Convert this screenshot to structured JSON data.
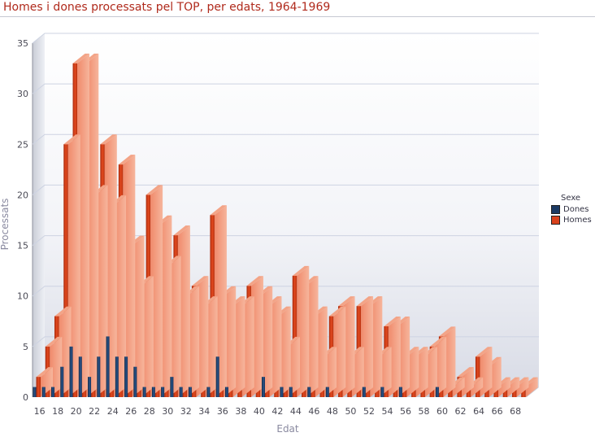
{
  "page": {
    "title": "Homes i dones processats pel TOP, per edats, 1964-1969"
  },
  "chart_data": {
    "type": "bar",
    "title": "Homes i dones processats pel TOP, per edats, 1964-1969",
    "xlabel": "Edat",
    "ylabel": "Processats",
    "categories": [
      16,
      17,
      18,
      19,
      20,
      21,
      22,
      23,
      24,
      25,
      26,
      27,
      28,
      29,
      30,
      31,
      32,
      33,
      34,
      35,
      36,
      37,
      38,
      39,
      40,
      41,
      42,
      43,
      44,
      45,
      46,
      47,
      48,
      49,
      50,
      51,
      52,
      53,
      54,
      55,
      56,
      57,
      58,
      59,
      60,
      61,
      62,
      63,
      64,
      65,
      66,
      67,
      68,
      69
    ],
    "x_tick_labels": [
      "16",
      "18",
      "20",
      "22",
      "24",
      "26",
      "28",
      "30",
      "32",
      "34",
      "36",
      "38",
      "40",
      "42",
      "44",
      "46",
      "48",
      "50",
      "52",
      "54",
      "56",
      "58",
      "60",
      "62",
      "64",
      "66",
      "68"
    ],
    "ylim": [
      0,
      35
    ],
    "y_ticks": [
      0,
      5,
      10,
      15,
      20,
      25,
      30,
      35
    ],
    "grid": true,
    "legend_title": "Sexe",
    "legend_position": "right",
    "series": [
      {
        "name": "Dones",
        "color": "#1b3a63",
        "values": [
          1,
          1,
          1,
          3,
          5,
          4,
          2,
          4,
          6,
          4,
          4,
          3,
          1,
          1,
          1,
          2,
          1,
          1,
          0,
          1,
          4,
          1,
          0,
          0,
          0,
          2,
          0,
          1,
          1,
          0,
          1,
          0,
          1,
          0,
          0,
          0,
          1,
          0,
          1,
          0,
          1,
          0,
          0,
          0,
          1,
          0,
          0,
          0,
          0,
          0,
          0,
          0,
          0,
          0
        ]
      },
      {
        "name": "Homes",
        "color": "#d8411c",
        "values": [
          2,
          5,
          8,
          25,
          33,
          33,
          20,
          25,
          19,
          23,
          15,
          11,
          20,
          17,
          13,
          16,
          10,
          11,
          9,
          18,
          10,
          9,
          9,
          11,
          10,
          9,
          8,
          5,
          12,
          11,
          8,
          4,
          8,
          9,
          4,
          9,
          9,
          4,
          7,
          7,
          4,
          4,
          4,
          5,
          6,
          1,
          2,
          1,
          4,
          3,
          1,
          1,
          1,
          1
        ]
      }
    ]
  }
}
